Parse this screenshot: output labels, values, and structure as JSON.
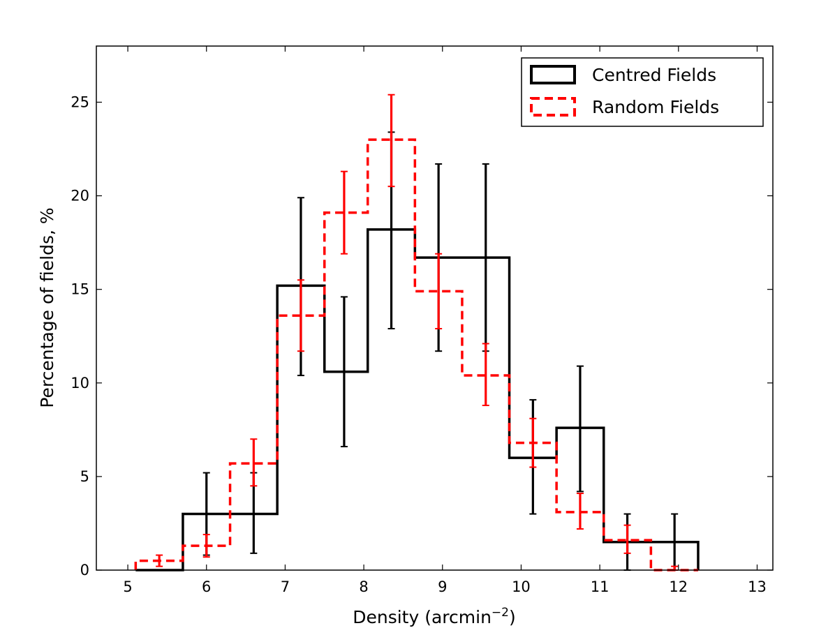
{
  "chart_data": {
    "type": "histogram",
    "xlabel": "Density (arcmin",
    "xlabel_sup": "−2",
    "xlabel_close": ")",
    "ylabel": "Percentage of fields, %",
    "xlim": [
      4.6,
      13.2
    ],
    "ylim": [
      0,
      28
    ],
    "xticks": [
      5,
      6,
      7,
      8,
      9,
      10,
      11,
      12,
      13
    ],
    "yticks": [
      0,
      5,
      10,
      15,
      20,
      25
    ],
    "grid": false,
    "legend_position": "top-right",
    "series": [
      {
        "name": "Centred Fields",
        "color": "#000000",
        "style": "solid",
        "bin_edges": [
          5.1,
          5.7,
          6.3,
          6.9,
          7.5,
          8.05,
          8.65,
          9.25,
          9.85,
          10.45,
          11.05,
          11.65,
          12.25
        ],
        "values": [
          0,
          3,
          3,
          15.2,
          10.6,
          18.2,
          16.7,
          16.7,
          6.0,
          7.6,
          1.5,
          1.5
        ],
        "errors": [
          {
            "x": 6.0,
            "low": 0.8,
            "high": 5.2
          },
          {
            "x": 6.6,
            "low": 0.9,
            "high": 5.2
          },
          {
            "x": 7.2,
            "low": 10.4,
            "high": 19.9
          },
          {
            "x": 7.75,
            "low": 6.6,
            "high": 14.6
          },
          {
            "x": 8.35,
            "low": 12.9,
            "high": 23.4
          },
          {
            "x": 8.95,
            "low": 11.7,
            "high": 21.7
          },
          {
            "x": 9.55,
            "low": 11.7,
            "high": 21.7
          },
          {
            "x": 10.15,
            "low": 3.0,
            "high": 9.1
          },
          {
            "x": 10.75,
            "low": 4.2,
            "high": 10.9
          },
          {
            "x": 11.35,
            "low": 0,
            "high": 3.0
          },
          {
            "x": 11.95,
            "low": 0,
            "high": 3.0
          }
        ]
      },
      {
        "name": "Random Fields",
        "color": "#ff0000",
        "style": "dashed",
        "bin_edges": [
          5.1,
          5.7,
          6.3,
          6.9,
          7.5,
          8.05,
          8.65,
          9.25,
          9.85,
          10.45,
          11.05,
          11.65,
          12.25
        ],
        "values": [
          0.5,
          1.3,
          5.7,
          13.6,
          19.1,
          23.0,
          14.9,
          10.4,
          6.8,
          3.1,
          1.6,
          0
        ],
        "errors": [
          {
            "x": 5.4,
            "low": 0.2,
            "high": 0.8
          },
          {
            "x": 6.0,
            "low": 0.7,
            "high": 1.9
          },
          {
            "x": 6.6,
            "low": 4.5,
            "high": 7.0
          },
          {
            "x": 7.2,
            "low": 11.7,
            "high": 15.5
          },
          {
            "x": 7.75,
            "low": 16.9,
            "high": 21.3
          },
          {
            "x": 8.35,
            "low": 20.5,
            "high": 25.4
          },
          {
            "x": 8.95,
            "low": 12.9,
            "high": 16.9
          },
          {
            "x": 9.55,
            "low": 8.8,
            "high": 12.1
          },
          {
            "x": 10.15,
            "low": 5.5,
            "high": 8.1
          },
          {
            "x": 10.75,
            "low": 2.2,
            "high": 4.1
          },
          {
            "x": 11.35,
            "low": 0.9,
            "high": 2.4
          },
          {
            "x": 11.95,
            "low": 0,
            "high": 0.2
          }
        ]
      }
    ]
  }
}
